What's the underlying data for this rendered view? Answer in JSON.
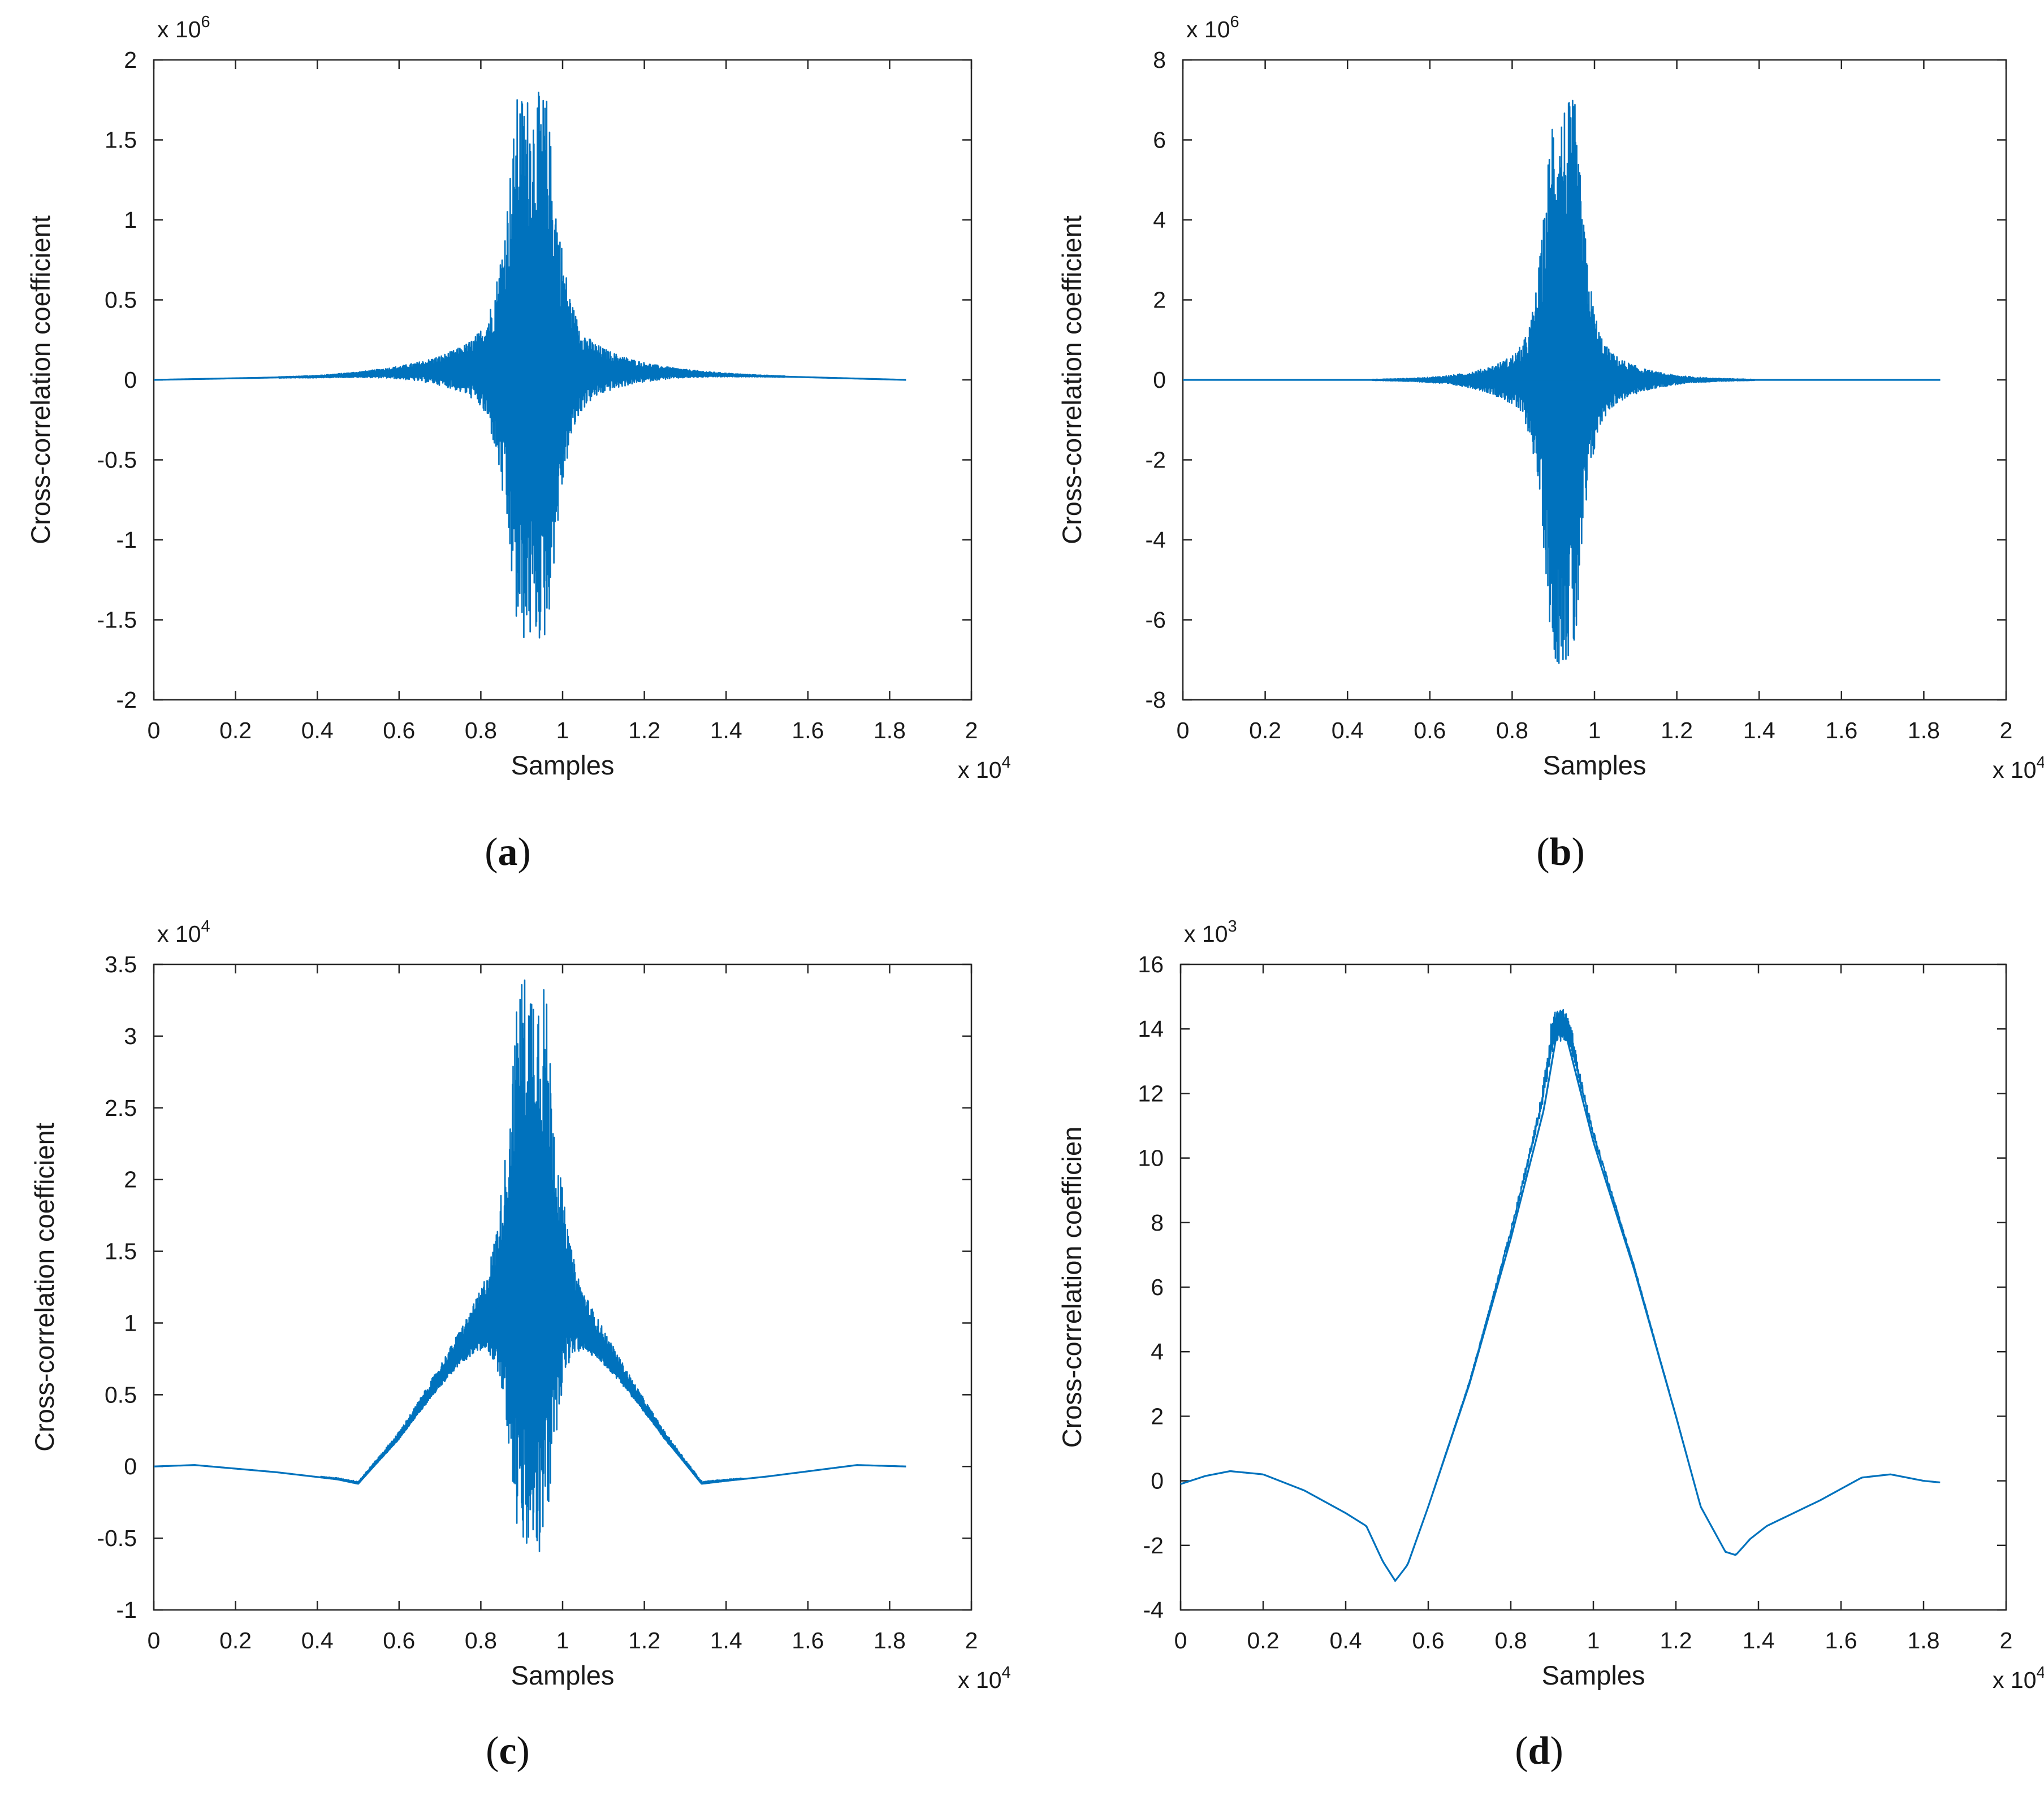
{
  "colors": {
    "series": "#0072BD",
    "axis": "#262626"
  },
  "chart_data": [
    {
      "id": "a",
      "caption_letter": "a",
      "type": "line",
      "xlabel": "Samples",
      "ylabel": "Cross-correlation coefficient",
      "x_multiplier": {
        "base": "x 10",
        "exp": "4"
      },
      "y_multiplier": {
        "base": "x 10",
        "exp": "6"
      },
      "xlim": [
        0,
        2
      ],
      "ylim": [
        -2,
        2
      ],
      "xticks": [
        "0",
        "0.2",
        "0.4",
        "0.6",
        "0.8",
        "1",
        "1.2",
        "1.4",
        "1.6",
        "1.8",
        "2"
      ],
      "yticks": [
        "2",
        "1.5",
        "1",
        "0.5",
        "0",
        "-0.5",
        "-1",
        "-1.5",
        "-2"
      ],
      "yticks_values": [
        2,
        1.5,
        1,
        0.5,
        0,
        -0.5,
        -1,
        -1.5,
        -2
      ],
      "series": [
        {
          "name": "cross-correlation",
          "x_end": 1.84,
          "center": 0.925,
          "baseline": [
            [
              0,
              0
            ],
            [
              0.4,
              0.02
            ],
            [
              0.8,
              0.07
            ],
            [
              0.92,
              0.05
            ],
            [
              1.05,
              0.06
            ],
            [
              1.4,
              0.03
            ],
            [
              1.84,
              0
            ]
          ],
          "burst": {
            "peak_max": 1.8,
            "peak_min": -1.65,
            "width": 0.045,
            "tail": 0.12
          }
        }
      ]
    },
    {
      "id": "b",
      "caption_letter": "b",
      "type": "line",
      "xlabel": "Samples",
      "ylabel": "Cross-correlation coefficient",
      "x_multiplier": {
        "base": "x 10",
        "exp": "4"
      },
      "y_multiplier": {
        "base": "x 10",
        "exp": "6"
      },
      "xlim": [
        0,
        2
      ],
      "ylim": [
        -8,
        8
      ],
      "xticks": [
        "0",
        "0.2",
        "0.4",
        "0.6",
        "0.8",
        "1",
        "1.2",
        "1.4",
        "1.6",
        "1.8",
        "2"
      ],
      "yticks": [
        "8",
        "6",
        "4",
        "2",
        "0",
        "-2",
        "-4",
        "-6",
        "-8"
      ],
      "yticks_values": [
        8,
        6,
        4,
        2,
        0,
        -2,
        -4,
        -6,
        -8
      ],
      "series": [
        {
          "name": "cross-correlation",
          "x_end": 1.84,
          "center": 0.925,
          "baseline": [
            [
              0,
              0
            ],
            [
              1.84,
              0
            ]
          ],
          "burst": {
            "peak_max": 7.0,
            "peak_min": -7.1,
            "width": 0.035,
            "tail": 0.09
          }
        }
      ]
    },
    {
      "id": "c",
      "caption_letter": "c",
      "type": "line",
      "xlabel": "Samples",
      "ylabel": "Cross-correlation coefficient",
      "x_multiplier": {
        "base": "x 10",
        "exp": "4"
      },
      "y_multiplier": {
        "base": "x 10",
        "exp": "4"
      },
      "xlim": [
        0,
        2
      ],
      "ylim": [
        -1,
        3.5
      ],
      "xticks": [
        "0",
        "0.2",
        "0.4",
        "0.6",
        "0.8",
        "1",
        "1.2",
        "1.4",
        "1.6",
        "1.8",
        "2"
      ],
      "yticks": [
        "3.5",
        "3",
        "2.5",
        "2",
        "1.5",
        "1",
        "0.5",
        "0",
        "-0.5",
        "-1"
      ],
      "yticks_values": [
        3.5,
        3,
        2.5,
        2,
        1.5,
        1,
        0.5,
        0,
        -0.5,
        -1
      ],
      "series": [
        {
          "name": "cross-correlation",
          "x_end": 1.84,
          "center": 0.925,
          "baseline": [
            [
              0,
              0
            ],
            [
              0.1,
              0.01
            ],
            [
              0.3,
              -0.04
            ],
            [
              0.45,
              -0.09
            ],
            [
              0.5,
              -0.12
            ],
            [
              0.6,
              0.2
            ],
            [
              0.75,
              0.8
            ],
            [
              0.85,
              1.15
            ],
            [
              0.925,
              1.3
            ],
            [
              1.0,
              1.15
            ],
            [
              1.1,
              0.8
            ],
            [
              1.25,
              0.2
            ],
            [
              1.34,
              -0.12
            ],
            [
              1.4,
              -0.1
            ],
            [
              1.5,
              -0.07
            ],
            [
              1.72,
              0.01
            ],
            [
              1.84,
              0
            ]
          ],
          "burst": {
            "peak_max": 3.45,
            "peak_min": -0.65,
            "width": 0.04,
            "tail": 0.1
          }
        }
      ]
    },
    {
      "id": "d",
      "caption_letter": "d",
      "type": "line",
      "xlabel": "Samples",
      "ylabel": "Cross-correlation coefficien",
      "x_multiplier": {
        "base": "x 10",
        "exp": "4"
      },
      "y_multiplier": {
        "base": "x 10",
        "exp": "3"
      },
      "xlim": [
        0,
        2
      ],
      "ylim": [
        -4,
        16
      ],
      "xticks": [
        "0",
        "0.2",
        "0.4",
        "0.6",
        "0.8",
        "1",
        "1.2",
        "1.4",
        "1.6",
        "1.8",
        "2"
      ],
      "yticks": [
        "16",
        "14",
        "12",
        "10",
        "8",
        "6",
        "4",
        "2",
        "0",
        "-2",
        "-4"
      ],
      "yticks_values": [
        16,
        14,
        12,
        10,
        8,
        6,
        4,
        2,
        0,
        -2,
        -4
      ],
      "series": [
        {
          "name": "cross-correlation",
          "x_end": 1.84,
          "center": 0.92,
          "baseline": [
            [
              0,
              -0.1
            ],
            [
              0.06,
              0.15
            ],
            [
              0.12,
              0.3
            ],
            [
              0.2,
              0.2
            ],
            [
              0.3,
              -0.3
            ],
            [
              0.4,
              -1.0
            ],
            [
              0.45,
              -1.4
            ],
            [
              0.49,
              -2.5
            ],
            [
              0.52,
              -3.1
            ],
            [
              0.55,
              -2.6
            ],
            [
              0.6,
              -0.8
            ],
            [
              0.7,
              3.0
            ],
            [
              0.8,
              7.5
            ],
            [
              0.88,
              11.5
            ],
            [
              0.92,
              14.5
            ],
            [
              0.96,
              12.5
            ],
            [
              1.0,
              10.5
            ],
            [
              1.1,
              6.5
            ],
            [
              1.2,
              2.0
            ],
            [
              1.26,
              -0.8
            ],
            [
              1.32,
              -2.2
            ],
            [
              1.345,
              -2.3
            ],
            [
              1.38,
              -1.8
            ],
            [
              1.42,
              -1.4
            ],
            [
              1.55,
              -0.6
            ],
            [
              1.65,
              0.1
            ],
            [
              1.72,
              0.2
            ],
            [
              1.8,
              0.0
            ],
            [
              1.84,
              -0.05
            ]
          ],
          "burst": {
            "peak_max": 14.6,
            "peak_min": 13.6,
            "width": 0.02,
            "tail": 0.06
          }
        }
      ]
    }
  ]
}
